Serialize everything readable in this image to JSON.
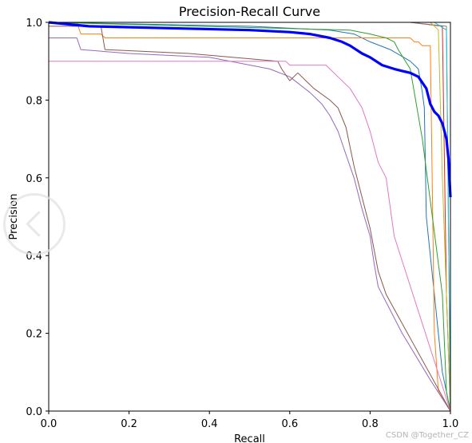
{
  "chart_data": {
    "type": "line",
    "title": "Precision-Recall Curve",
    "xlabel": "Recall",
    "ylabel": "Precision",
    "xlim": [
      0,
      1
    ],
    "ylim": [
      0,
      1
    ],
    "xticks": [
      "0.0",
      "0.2",
      "0.4",
      "0.6",
      "0.8",
      "1.0"
    ],
    "yticks": [
      "0.0",
      "0.2",
      "0.4",
      "0.6",
      "0.8",
      "1.0"
    ],
    "grid": false,
    "legend": "none",
    "series": [
      {
        "color": "#1f77b4",
        "x": [
          0,
          0.5,
          0.7,
          0.76,
          0.8,
          0.85,
          0.9,
          0.92,
          0.93,
          0.935,
          0.94,
          0.95,
          0.96,
          0.97,
          0.98,
          1.0
        ],
        "y": [
          1.0,
          0.99,
          0.98,
          0.97,
          0.95,
          0.93,
          0.9,
          0.88,
          0.82,
          0.78,
          0.5,
          0.4,
          0.3,
          0.2,
          0.1,
          0.0
        ]
      },
      {
        "color": "#ff7f0e",
        "x": [
          0,
          0.07,
          0.08,
          0.13,
          0.14,
          0.5,
          0.85,
          0.9,
          0.91,
          0.92,
          0.93,
          0.95,
          0.96,
          0.97,
          1.0
        ],
        "y": [
          1.0,
          1.0,
          0.97,
          0.97,
          0.96,
          0.96,
          0.96,
          0.96,
          0.95,
          0.95,
          0.94,
          0.94,
          0.2,
          0.05,
          0.0
        ]
      },
      {
        "color": "#2ca02c",
        "x": [
          0,
          0.75,
          0.8,
          0.84,
          0.86,
          0.87,
          0.9,
          0.93,
          0.98,
          0.99,
          1.0
        ],
        "y": [
          1.0,
          0.98,
          0.97,
          0.96,
          0.95,
          0.93,
          0.88,
          0.7,
          0.3,
          0.05,
          0.0
        ]
      },
      {
        "color": "#d62728",
        "x": [
          0,
          0.9,
          0.98,
          0.99,
          1.0
        ],
        "y": [
          1.0,
          1.0,
          0.99,
          0.3,
          0.0
        ]
      },
      {
        "color": "#9467bd",
        "x": [
          0,
          0.07,
          0.08,
          0.2,
          0.4,
          0.55,
          0.6,
          0.65,
          0.68,
          0.7,
          0.72,
          0.74,
          0.76,
          0.78,
          0.8,
          0.81,
          0.82,
          0.84,
          0.88,
          0.95,
          1.0
        ],
        "y": [
          0.96,
          0.96,
          0.93,
          0.92,
          0.91,
          0.88,
          0.86,
          0.82,
          0.79,
          0.76,
          0.72,
          0.66,
          0.6,
          0.52,
          0.45,
          0.38,
          0.32,
          0.28,
          0.2,
          0.08,
          0.0
        ]
      },
      {
        "color": "#8c564b",
        "x": [
          0,
          0.13,
          0.14,
          0.35,
          0.57,
          0.58,
          0.6,
          0.62,
          0.64,
          0.66,
          0.7,
          0.72,
          0.74,
          0.76,
          0.78,
          0.8,
          0.82,
          0.84,
          1.0
        ],
        "y": [
          0.99,
          0.99,
          0.93,
          0.92,
          0.9,
          0.88,
          0.85,
          0.87,
          0.85,
          0.83,
          0.8,
          0.78,
          0.73,
          0.63,
          0.55,
          0.47,
          0.36,
          0.3,
          0.0
        ]
      },
      {
        "color": "#e377c2",
        "x": [
          0,
          0.08,
          0.09,
          0.2,
          0.4,
          0.59,
          0.6,
          0.69,
          0.72,
          0.75,
          0.78,
          0.8,
          0.81,
          0.82,
          0.84,
          0.86,
          1.0
        ],
        "y": [
          0.9,
          0.9,
          0.9,
          0.9,
          0.9,
          0.9,
          0.89,
          0.89,
          0.86,
          0.83,
          0.78,
          0.72,
          0.68,
          0.64,
          0.6,
          0.45,
          0.0
        ]
      },
      {
        "color": "#7f7f7f",
        "x": [
          0,
          0.9,
          0.99,
          1.0
        ],
        "y": [
          1.0,
          1.0,
          0.99,
          0.0
        ]
      },
      {
        "color": "#bcbd22",
        "x": [
          0,
          0.95,
          0.97,
          0.98,
          0.99,
          1.0
        ],
        "y": [
          1.0,
          1.0,
          0.98,
          0.6,
          0.3,
          0.0
        ]
      },
      {
        "color": "#17becf",
        "x": [
          0,
          0.96,
          0.99,
          1.0
        ],
        "y": [
          1.0,
          1.0,
          0.98,
          0.0
        ]
      },
      {
        "color": "#0000ff",
        "bold": true,
        "x": [
          0,
          0.1,
          0.3,
          0.5,
          0.6,
          0.65,
          0.7,
          0.73,
          0.75,
          0.78,
          0.8,
          0.83,
          0.86,
          0.88,
          0.9,
          0.92,
          0.94,
          0.95,
          0.96,
          0.97,
          0.98,
          0.985,
          0.99,
          0.995,
          1.0
        ],
        "y": [
          1.0,
          0.99,
          0.985,
          0.98,
          0.975,
          0.97,
          0.96,
          0.95,
          0.94,
          0.92,
          0.91,
          0.89,
          0.88,
          0.875,
          0.87,
          0.86,
          0.83,
          0.79,
          0.77,
          0.76,
          0.74,
          0.72,
          0.7,
          0.65,
          0.55
        ]
      }
    ]
  },
  "watermark": "CSDN @Together_CZ"
}
